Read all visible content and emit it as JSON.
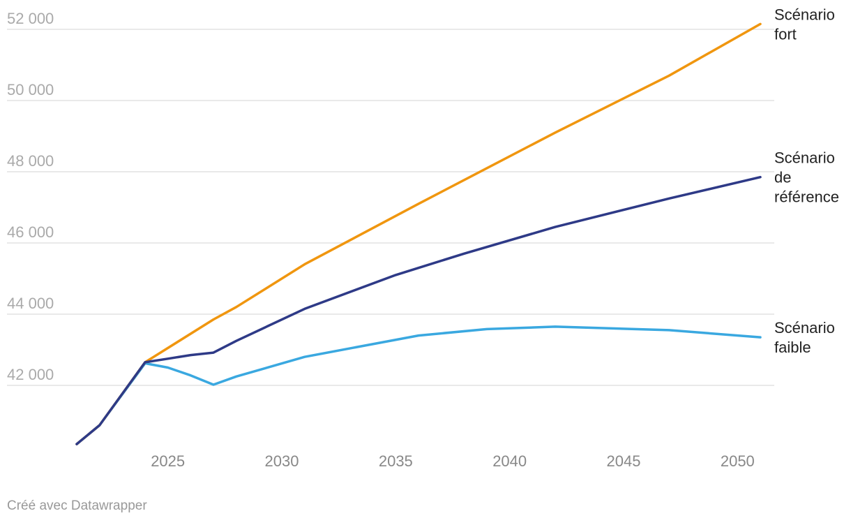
{
  "chart_data": {
    "type": "line",
    "title": "",
    "xlabel": "",
    "ylabel": "",
    "xlim": [
      2021,
      2051
    ],
    "ylim": [
      40200,
      52400
    ],
    "y_ticks": [
      42000,
      44000,
      46000,
      48000,
      50000,
      52000
    ],
    "y_tick_labels": [
      "42 000",
      "44 000",
      "46 000",
      "48 000",
      "50 000",
      "52 000"
    ],
    "x_ticks": [
      2025,
      2030,
      2035,
      2040,
      2045,
      2050
    ],
    "x_tick_labels": [
      "2025",
      "2030",
      "2035",
      "2040",
      "2045",
      "2050"
    ],
    "grid": true,
    "legend": "inline-right",
    "series": [
      {
        "name": "Scénario fort",
        "label_lines": [
          "Scénario",
          "fort"
        ],
        "color": "#f0960f",
        "points": [
          [
            2021,
            40350
          ],
          [
            2022,
            40880
          ],
          [
            2024,
            42650
          ],
          [
            2027,
            43850
          ],
          [
            2028,
            44200
          ],
          [
            2031,
            45400
          ],
          [
            2036,
            47100
          ],
          [
            2042,
            49100
          ],
          [
            2047,
            50700
          ],
          [
            2051,
            52150
          ]
        ]
      },
      {
        "name": "Scénario de référence",
        "label_lines": [
          "Scénario",
          "de",
          "référence"
        ],
        "color": "#2e3a87",
        "points": [
          [
            2021,
            40350
          ],
          [
            2022,
            40880
          ],
          [
            2024,
            42650
          ],
          [
            2025,
            42750
          ],
          [
            2026,
            42850
          ],
          [
            2027,
            42920
          ],
          [
            2028,
            43250
          ],
          [
            2031,
            44150
          ],
          [
            2035,
            45100
          ],
          [
            2038,
            45700
          ],
          [
            2042,
            46450
          ],
          [
            2047,
            47250
          ],
          [
            2051,
            47850
          ]
        ]
      },
      {
        "name": "Scénario faible",
        "label_lines": [
          "Scénario",
          "faible"
        ],
        "color": "#3aa8e0",
        "points": [
          [
            2021,
            40350
          ],
          [
            2022,
            40880
          ],
          [
            2024,
            42620
          ],
          [
            2025,
            42500
          ],
          [
            2026,
            42280
          ],
          [
            2027,
            42020
          ],
          [
            2028,
            42250
          ],
          [
            2031,
            42800
          ],
          [
            2036,
            43400
          ],
          [
            2039,
            43580
          ],
          [
            2042,
            43650
          ],
          [
            2047,
            43550
          ],
          [
            2051,
            43350
          ]
        ]
      }
    ]
  },
  "footer": {
    "credit": "Créé avec Datawrapper"
  }
}
